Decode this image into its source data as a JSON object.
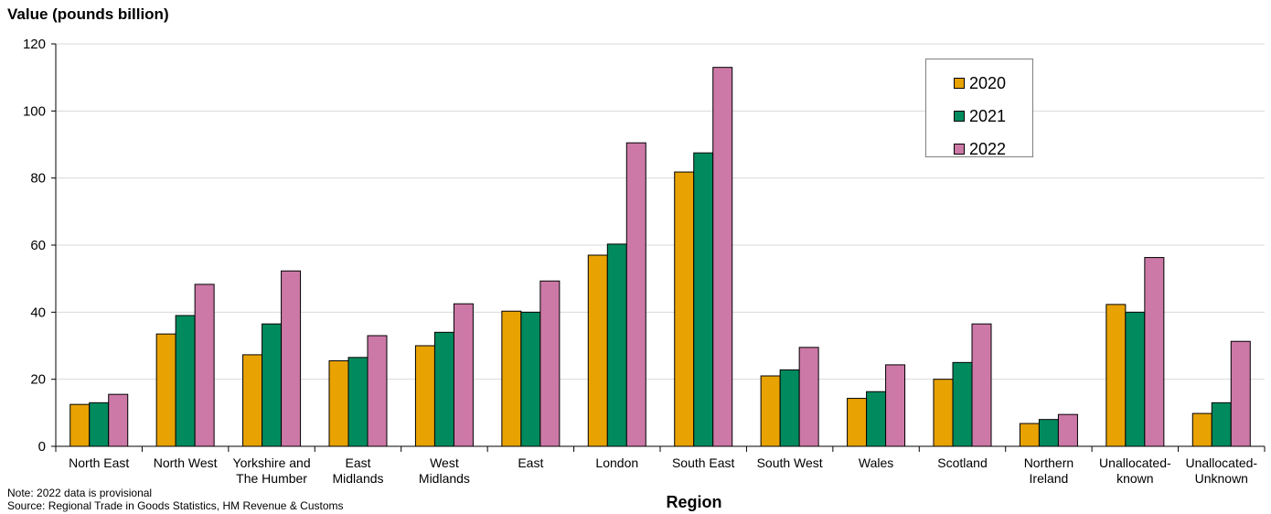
{
  "chart_data": {
    "type": "bar",
    "title": "",
    "ylabel": "Value (pounds billion)",
    "xlabel": "Region",
    "ylim": [
      0,
      120
    ],
    "yticks": [
      0,
      20,
      40,
      60,
      80,
      100,
      120
    ],
    "grid": true,
    "legend_position": "top-right",
    "categories": [
      [
        "North East"
      ],
      [
        "North West"
      ],
      [
        "Yorkshire and",
        "The Humber"
      ],
      [
        "East",
        "Midlands"
      ],
      [
        "West",
        "Midlands"
      ],
      [
        "East"
      ],
      [
        "London"
      ],
      [
        "South East"
      ],
      [
        "South West"
      ],
      [
        "Wales"
      ],
      [
        "Scotland"
      ],
      [
        "Northern",
        "Ireland"
      ],
      [
        "Unallocated-",
        "known"
      ],
      [
        "Unallocated-",
        "Unknown"
      ]
    ],
    "series": [
      {
        "name": "2020",
        "color": "#E8A202",
        "values": [
          12.5,
          33.5,
          27.3,
          25.5,
          30.0,
          40.3,
          57.0,
          81.8,
          21.0,
          14.3,
          20.0,
          6.8,
          42.3,
          9.8
        ]
      },
      {
        "name": "2021",
        "color": "#008A5E",
        "values": [
          13.0,
          39.0,
          36.5,
          26.5,
          34.0,
          40.0,
          60.3,
          87.5,
          22.8,
          16.3,
          25.0,
          8.0,
          40.0,
          13.0
        ]
      },
      {
        "name": "2022",
        "color": "#CC79A7",
        "values": [
          15.5,
          48.3,
          52.3,
          33.0,
          42.5,
          49.3,
          90.5,
          113.0,
          29.5,
          24.3,
          36.5,
          9.5,
          56.3,
          31.3
        ]
      }
    ]
  },
  "note": "Note: 2022 data is provisional",
  "source": "Source: Regional Trade in Goods Statistics, HM Revenue & Customs"
}
